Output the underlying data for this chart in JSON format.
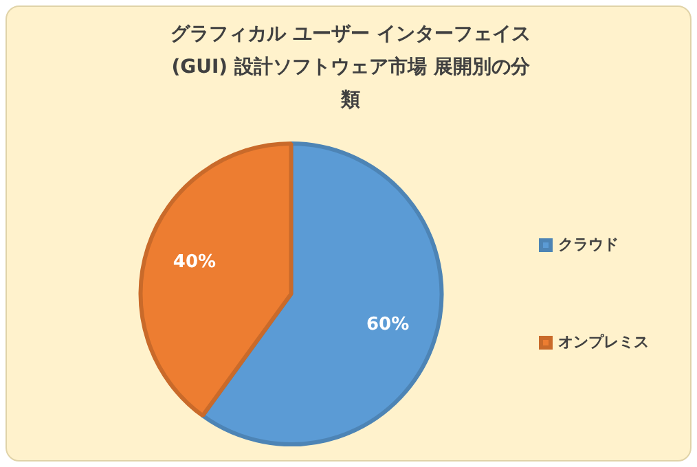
{
  "chart_data": {
    "type": "pie",
    "title": "グラフィカル ユーザー インターフェイス (GUI) 設計ソフトウェア市場 展開別の分類",
    "categories": [
      "クラウド",
      "オンプレミス"
    ],
    "values": [
      60,
      40
    ],
    "value_labels": [
      "60%",
      "40%"
    ],
    "colors": [
      "#5b9bd5",
      "#ed7d31"
    ],
    "legend": "right"
  }
}
